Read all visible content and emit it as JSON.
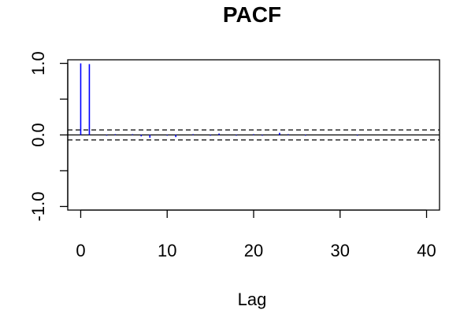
{
  "chart_data": {
    "type": "bar",
    "title": "PACF",
    "xlabel": "Lag",
    "ylabel": "",
    "xlim": [
      -1.5,
      41.5
    ],
    "ylim": [
      -1.05,
      1.05
    ],
    "x_ticks": [
      0,
      10,
      20,
      30,
      40
    ],
    "y_ticks": [
      -1.0,
      -0.5,
      0.0,
      0.5,
      1.0
    ],
    "y_tick_labels": [
      "-1.0",
      "",
      "0.0",
      "",
      "1.0"
    ],
    "grid": false,
    "legend": "none",
    "confidence_band": [
      -0.07,
      0.07
    ],
    "bar_color": "#0000ff",
    "band_color": "#000000",
    "series": [
      {
        "lags": [
          0,
          1,
          2,
          3,
          4,
          5,
          6,
          7,
          8,
          9,
          10,
          11,
          12,
          13,
          14,
          15,
          16,
          17,
          18,
          19,
          20,
          21,
          22,
          23,
          24,
          25,
          26,
          27,
          28,
          29,
          30,
          31,
          32,
          33,
          34,
          35,
          36,
          37,
          38,
          39,
          40
        ],
        "values": [
          1.0,
          0.99,
          0.0,
          -0.01,
          0.01,
          0.0,
          0.01,
          -0.02,
          -0.04,
          0.0,
          -0.01,
          -0.03,
          0.0,
          0.01,
          0.0,
          -0.01,
          0.02,
          0.0,
          -0.01,
          0.0,
          0.01,
          -0.01,
          0.0,
          0.03,
          0.01,
          0.0,
          -0.01,
          0.0,
          0.0,
          0.0,
          0.0,
          0.0,
          -0.01,
          0.0,
          0.0,
          0.0,
          0.0,
          0.0,
          0.0,
          0.0,
          0.0
        ]
      }
    ]
  }
}
